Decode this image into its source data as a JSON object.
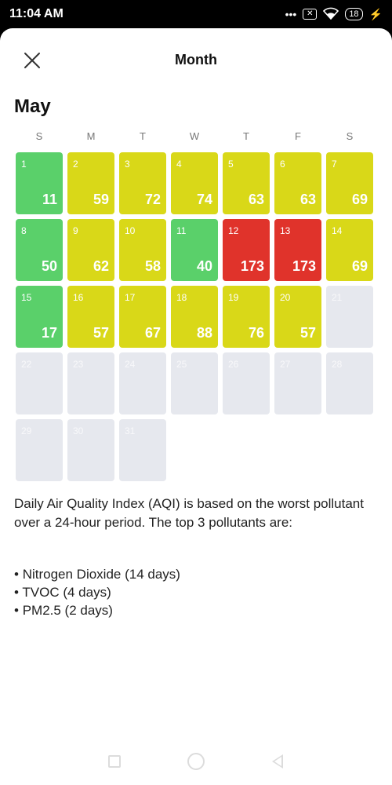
{
  "status_bar": {
    "time": "11:04 AM",
    "icons": [
      "more-dots-icon",
      "sim-blocked-icon",
      "wifi-icon",
      "battery-icon",
      "charging-icon"
    ],
    "battery_level": "18"
  },
  "header": {
    "title": "Month",
    "close_icon": "close-icon"
  },
  "calendar": {
    "month": "May",
    "weekdays": [
      "S",
      "M",
      "T",
      "W",
      "T",
      "F",
      "S"
    ],
    "days": [
      {
        "day": "1",
        "aqi": "11",
        "level": "good"
      },
      {
        "day": "2",
        "aqi": "59",
        "level": "mod"
      },
      {
        "day": "3",
        "aqi": "72",
        "level": "mod"
      },
      {
        "day": "4",
        "aqi": "74",
        "level": "mod"
      },
      {
        "day": "5",
        "aqi": "63",
        "level": "mod"
      },
      {
        "day": "6",
        "aqi": "63",
        "level": "mod"
      },
      {
        "day": "7",
        "aqi": "69",
        "level": "mod"
      },
      {
        "day": "8",
        "aqi": "50",
        "level": "good"
      },
      {
        "day": "9",
        "aqi": "62",
        "level": "mod"
      },
      {
        "day": "10",
        "aqi": "58",
        "level": "mod"
      },
      {
        "day": "11",
        "aqi": "40",
        "level": "good"
      },
      {
        "day": "12",
        "aqi": "173",
        "level": "bad"
      },
      {
        "day": "13",
        "aqi": "173",
        "level": "bad"
      },
      {
        "day": "14",
        "aqi": "69",
        "level": "mod"
      },
      {
        "day": "15",
        "aqi": "17",
        "level": "good"
      },
      {
        "day": "16",
        "aqi": "57",
        "level": "mod"
      },
      {
        "day": "17",
        "aqi": "67",
        "level": "mod"
      },
      {
        "day": "18",
        "aqi": "88",
        "level": "mod"
      },
      {
        "day": "19",
        "aqi": "76",
        "level": "mod"
      },
      {
        "day": "20",
        "aqi": "57",
        "level": "mod"
      },
      {
        "day": "21",
        "aqi": "",
        "level": "empty"
      },
      {
        "day": "22",
        "aqi": "",
        "level": "empty"
      },
      {
        "day": "23",
        "aqi": "",
        "level": "empty"
      },
      {
        "day": "24",
        "aqi": "",
        "level": "empty"
      },
      {
        "day": "25",
        "aqi": "",
        "level": "empty"
      },
      {
        "day": "26",
        "aqi": "",
        "level": "empty"
      },
      {
        "day": "27",
        "aqi": "",
        "level": "empty"
      },
      {
        "day": "28",
        "aqi": "",
        "level": "empty"
      },
      {
        "day": "29",
        "aqi": "",
        "level": "empty"
      },
      {
        "day": "30",
        "aqi": "",
        "level": "empty"
      },
      {
        "day": "31",
        "aqi": "",
        "level": "empty"
      }
    ],
    "colors": {
      "good": "#5ad06a",
      "moderate": "#d9d818",
      "unhealthy": "#e0332b",
      "no_data": "#e6e8ee"
    }
  },
  "info": {
    "description": "Daily Air Quality Index (AQI) is based on the worst pollutant over a 24-hour period. The top 3 pollutants are:",
    "pollutants": [
      "Nitrogen Dioxide (14 days)",
      "TVOC (4 days)",
      "PM2.5 (2 days)"
    ]
  },
  "nav_bar": {
    "icons": [
      "recents-square-icon",
      "home-circle-icon",
      "back-triangle-icon"
    ]
  }
}
